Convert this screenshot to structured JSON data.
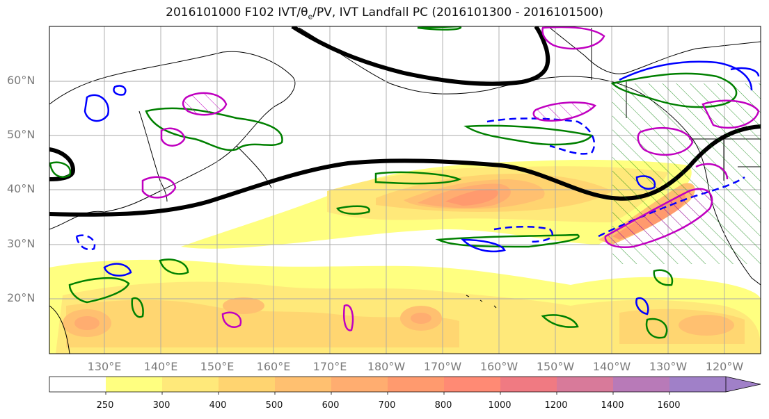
{
  "title": "2016101000 F102 IVT/θe/PV, IVT Landfall PC (2016101300 - 2016101500)",
  "title_parts": {
    "main": "2016101000 F102 IVT/θ",
    "sub": "e",
    "rest": "/PV, IVT Landfall PC (2016101300 - 2016101500)"
  },
  "lat_labels": [
    "60°N",
    "50°N",
    "40°N",
    "30°N",
    "20°N"
  ],
  "lon_labels": [
    "130°E",
    "140°E",
    "150°E",
    "160°E",
    "170°E",
    "180°W",
    "170°W",
    "160°W",
    "150°W",
    "140°W",
    "130°W",
    "120°W"
  ],
  "colorbar": {
    "levels": [
      "250",
      "300",
      "400",
      "500",
      "600",
      "700",
      "800",
      "1000",
      "1200",
      "1400",
      "1600"
    ],
    "colors": [
      "#ffffff",
      "#ffff80",
      "#ffe97a",
      "#ffd470",
      "#ffc070",
      "#ffad70",
      "#ff9a6e",
      "#ff8a74",
      "#f07a82",
      "#d87a9a",
      "#b87ab8",
      "#a080c8"
    ]
  },
  "colors": {
    "pv": "#000000",
    "theta_pos": "#008000",
    "theta_neg": "#0000ff",
    "ivt_pc": "#c000c0"
  }
}
